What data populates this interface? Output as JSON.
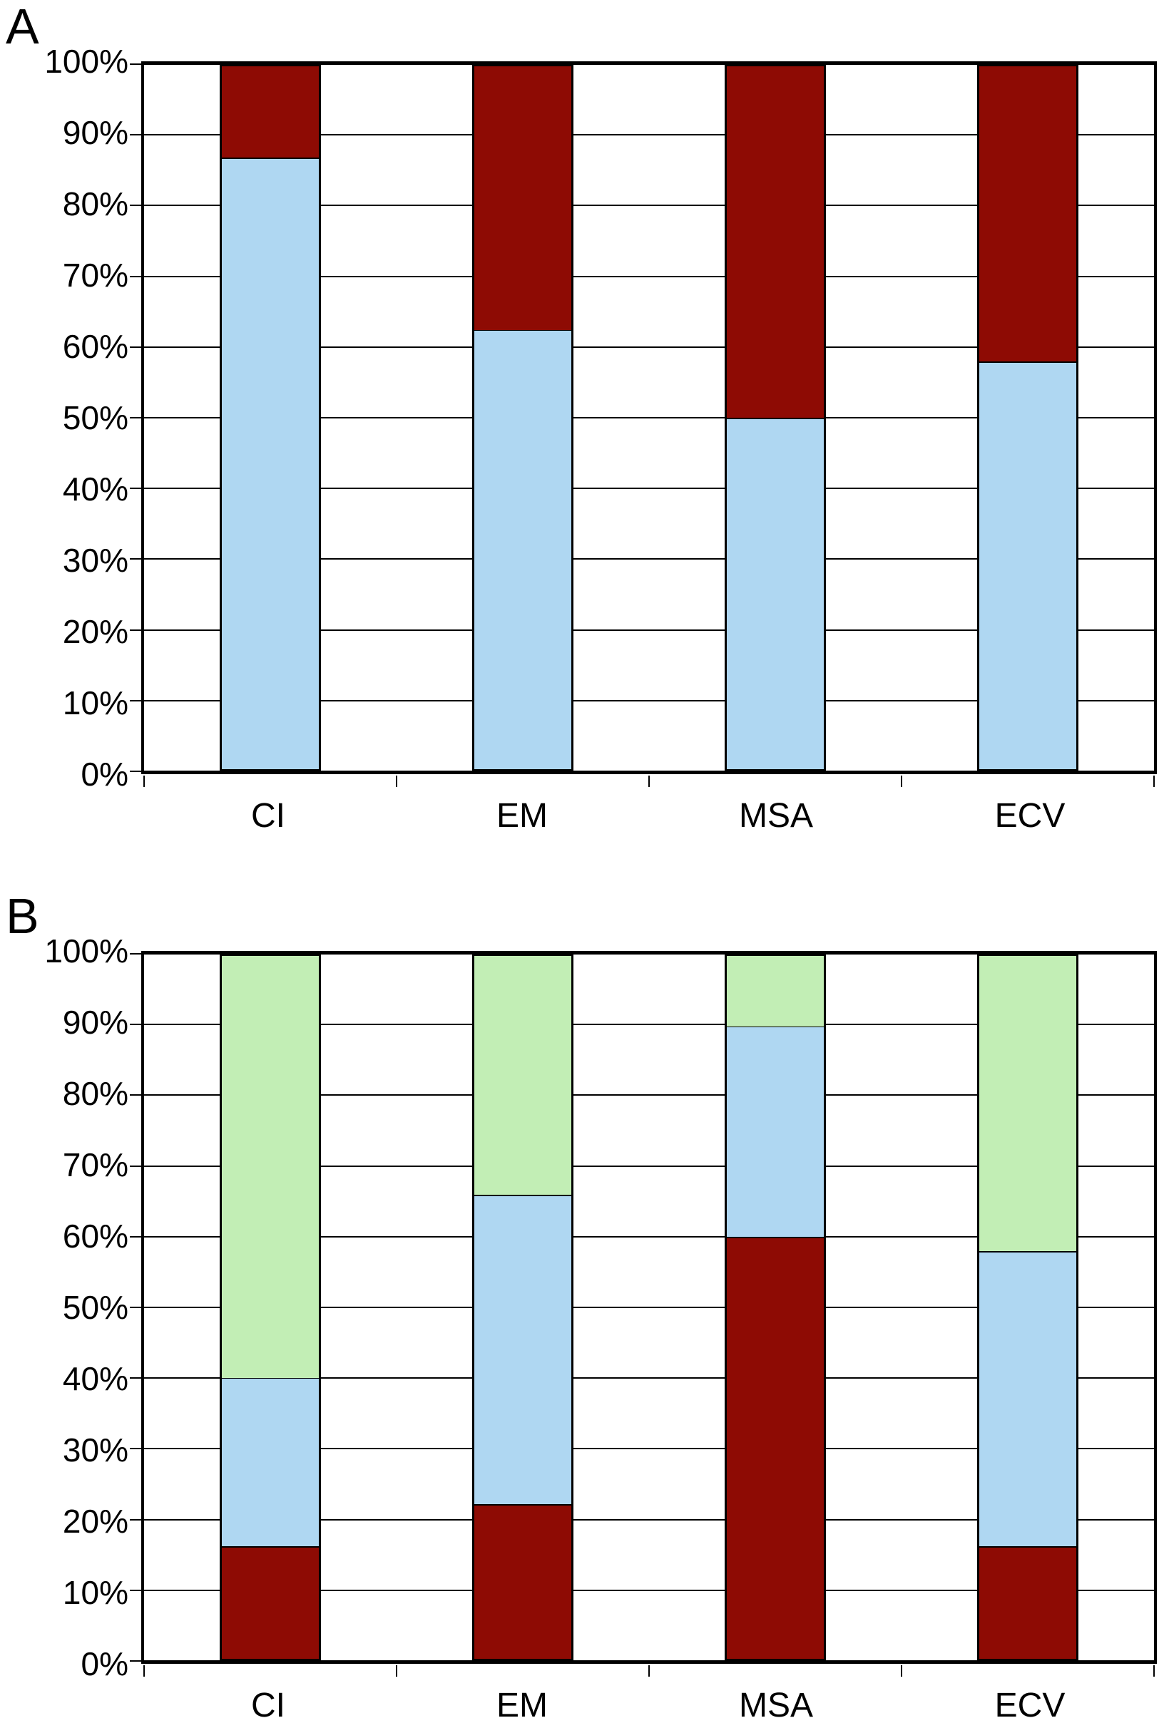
{
  "panels": [
    {
      "label": "A",
      "chart_data": {
        "type": "bar",
        "stacked": true,
        "percent_stacked": true,
        "title": "",
        "xlabel": "",
        "ylabel": "",
        "categories": [
          "CI",
          "EM",
          "MSA",
          "ECV"
        ],
        "series": [
          {
            "name": "light-blue",
            "color": "#AFD7F2",
            "values": [
              87,
              62.5,
              50,
              58
            ]
          },
          {
            "name": "dark-red",
            "color": "#8E0B04",
            "values": [
              13,
              37.5,
              50,
              42
            ]
          }
        ],
        "ylim": [
          0,
          100
        ],
        "ytick_step": 10,
        "ytick_labels": [
          "0%",
          "10%",
          "20%",
          "30%",
          "40%",
          "50%",
          "60%",
          "70%",
          "80%",
          "90%",
          "100%"
        ],
        "grid": true,
        "legend": false
      }
    },
    {
      "label": "B",
      "chart_data": {
        "type": "bar",
        "stacked": true,
        "percent_stacked": true,
        "title": "",
        "xlabel": "",
        "ylabel": "",
        "categories": [
          "CI",
          "EM",
          "MSA",
          "ECV"
        ],
        "series": [
          {
            "name": "dark-red",
            "color": "#8E0B04",
            "values": [
              16,
              22,
              60,
              16
            ]
          },
          {
            "name": "light-blue",
            "color": "#AFD7F2",
            "values": [
              24,
              44,
              30,
              42
            ]
          },
          {
            "name": "light-green",
            "color": "#C2EEB5",
            "values": [
              60,
              34,
              10,
              42
            ]
          }
        ],
        "ylim": [
          0,
          100
        ],
        "ytick_step": 10,
        "ytick_labels": [
          "0%",
          "10%",
          "20%",
          "30%",
          "40%",
          "50%",
          "60%",
          "70%",
          "80%",
          "90%",
          "100%"
        ],
        "grid": true,
        "legend": false
      }
    }
  ]
}
